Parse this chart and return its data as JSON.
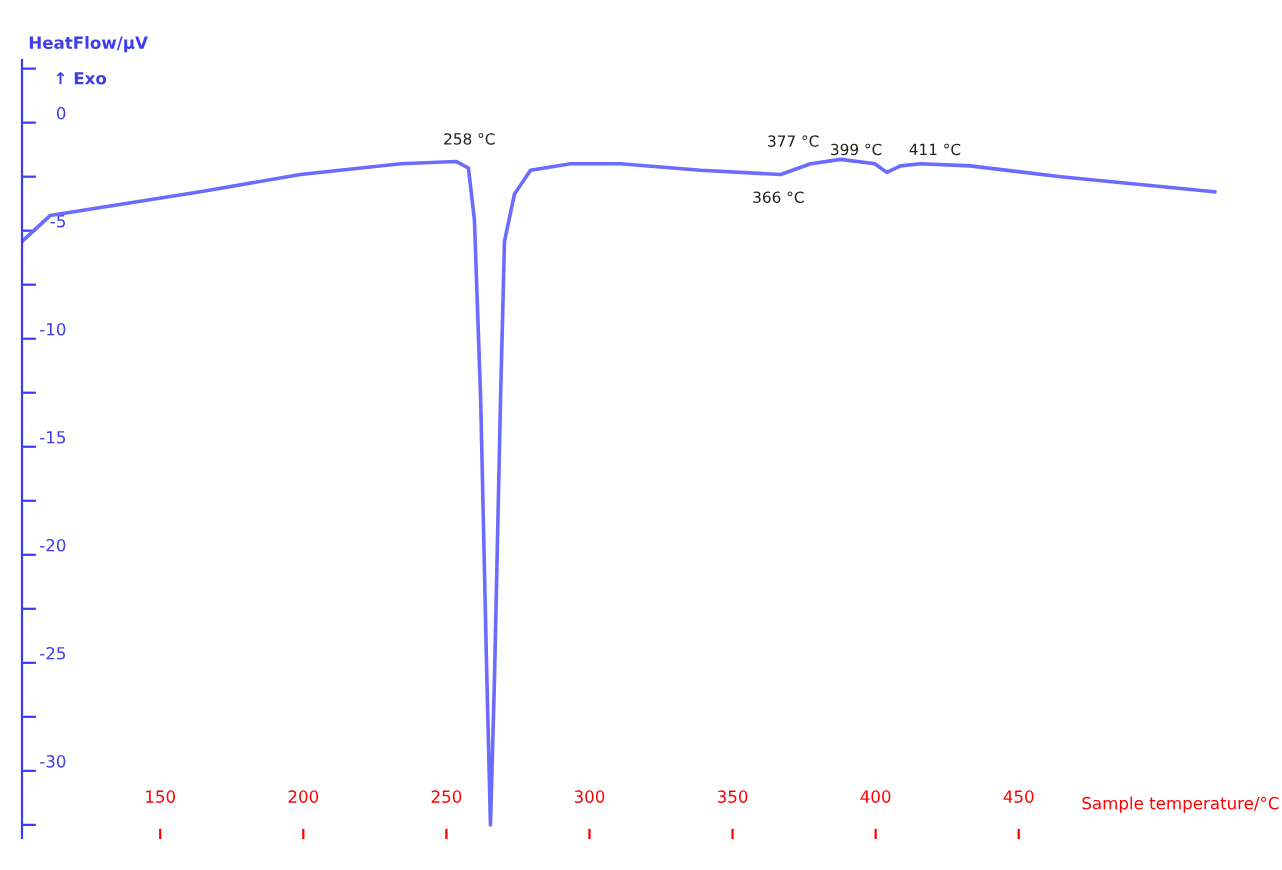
{
  "chart_data": {
    "type": "line",
    "xlabel": "Sample temperature/°C",
    "ylabel": "HeatFlow/µV",
    "x": [
      101.7,
      111.5,
      164,
      199,
      234,
      253.5,
      257.7,
      259.8,
      262,
      264,
      265.4,
      266.8,
      268.9,
      270.3,
      273.8,
      279.4,
      293.4,
      310.8,
      338.8,
      366.8,
      377.3,
      387.8,
      399.7,
      403.9,
      408.7,
      415.7,
      433,
      464.7,
      518.5
    ],
    "series": [
      {
        "color": "#6b6bff",
        "values": [
          -5.5,
          -4.3,
          -3.2,
          -2.4,
          -1.9,
          -1.8,
          -2.1,
          -4.5,
          -12.9,
          -24.9,
          -32.5,
          -25.8,
          -12.9,
          -5.5,
          -3.3,
          -2.2,
          -1.9,
          -1.9,
          -2.2,
          -2.4,
          -1.9,
          -1.7,
          -1.9,
          -2.3,
          -2.0,
          -1.9,
          -2.0,
          -2.5,
          -3.2
        ]
      }
    ],
    "xlim": [
      101.7,
      542
    ],
    "ylim": [
      -33.2,
      2.9
    ],
    "xticks": [
      150,
      200,
      250,
      300,
      350,
      400,
      450
    ],
    "yticks": [
      {
        "value": 2.5,
        "label": null
      },
      0,
      {
        "value": -2.5,
        "label": null
      },
      -5,
      {
        "value": -7.5,
        "label": null
      },
      -10,
      {
        "value": -12.5,
        "label": null
      },
      -15,
      {
        "value": -17.5,
        "label": null
      },
      -20,
      {
        "value": -22.5,
        "label": null
      },
      -25,
      {
        "value": -27.5,
        "label": null
      },
      -30,
      {
        "value": -32.5,
        "label": null
      }
    ],
    "grid": false,
    "legend": false,
    "marker": "none",
    "line_style": "solid",
    "annotations": [
      "↑ Exo",
      {
        "text": "258 °C",
        "x": 258,
        "y": -1.8
      },
      {
        "text": "377 °C",
        "x": 377,
        "y": -1.9
      },
      {
        "text": "366 °C",
        "x": 366,
        "y": -2.4
      },
      {
        "text": "399 °C",
        "x": 399,
        "y": -1.9
      },
      {
        "text": "411 °C",
        "x": 411,
        "y": -1.9
      }
    ]
  }
}
